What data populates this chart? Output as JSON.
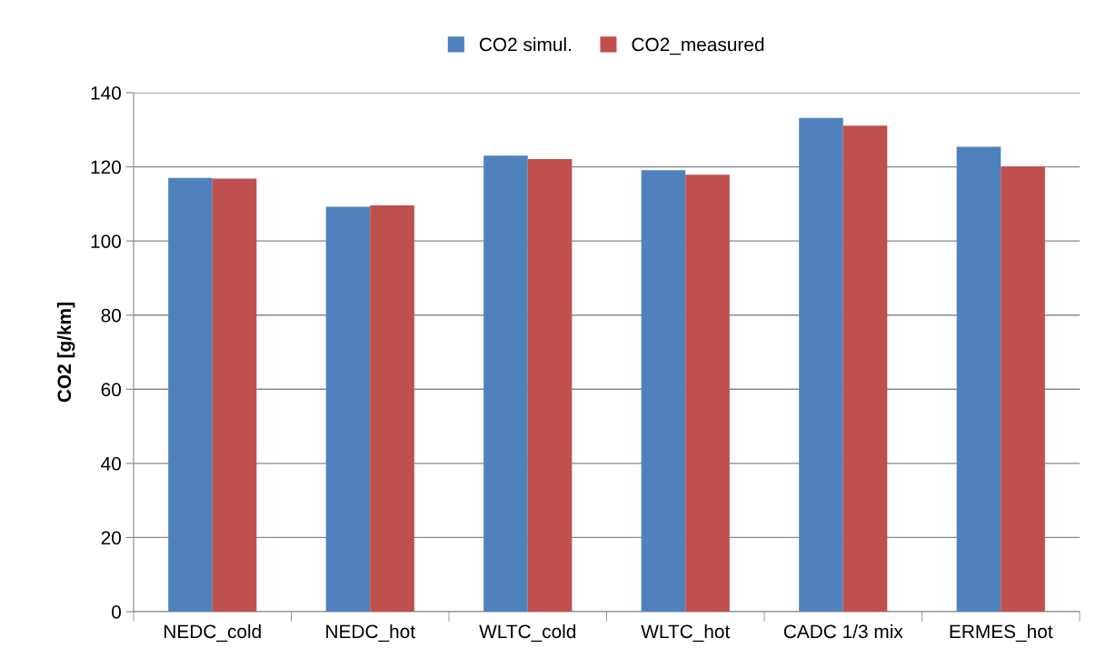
{
  "chart_data": {
    "type": "bar",
    "ylabel": "CO2 [g/km]",
    "categories": [
      "NEDC_cold",
      "NEDC_hot",
      "WLTC_cold",
      "WLTC_hot",
      "CADC 1/3 mix",
      "ERMES_hot"
    ],
    "series": [
      {
        "name": "CO2 simul.",
        "color": "#4f81bd",
        "values": [
          117,
          109.2,
          123,
          119.1,
          133.2,
          125.4
        ]
      },
      {
        "name": "CO2_measured",
        "color": "#c0504d",
        "values": [
          116.8,
          109.6,
          122.1,
          117.9,
          131.1,
          120.1
        ]
      }
    ],
    "ylim": [
      0,
      140
    ],
    "yticks": [
      0,
      20,
      40,
      60,
      80,
      100,
      120,
      140
    ],
    "grid": "y",
    "legend": "top"
  }
}
